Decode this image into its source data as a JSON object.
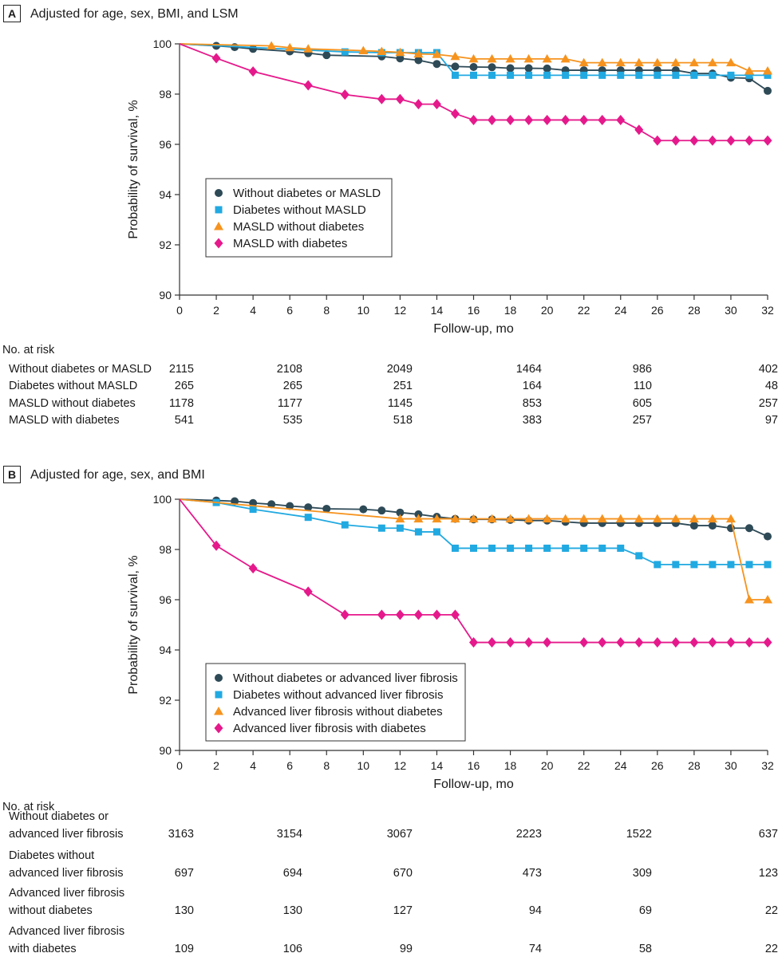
{
  "chart_data": [
    {
      "type": "line",
      "panel": "A",
      "title": "Adjusted for age, sex, BMI, and LSM",
      "xlabel": "Follow-up, mo",
      "ylabel": "Probability of survival, %",
      "xlim": [
        0,
        32
      ],
      "ylim": [
        90,
        100
      ],
      "xticks": [
        "0",
        "2",
        "4",
        "6",
        "8",
        "10",
        "12",
        "14",
        "16",
        "18",
        "20",
        "22",
        "24",
        "26",
        "28",
        "30",
        "32"
      ],
      "yticks": [
        "90",
        "92",
        "94",
        "96",
        "98",
        "100"
      ],
      "legend_position": "middle-left",
      "series": [
        {
          "name": "Without diabetes or MASLD",
          "color": "#2e4a57",
          "marker": "circle",
          "points": [
            [
              0,
              100
            ],
            [
              2,
              99.92
            ],
            [
              3,
              99.87
            ],
            [
              4,
              99.8
            ],
            [
              6,
              99.7
            ],
            [
              7,
              99.63
            ],
            [
              8,
              99.55
            ],
            [
              11,
              99.5
            ],
            [
              12,
              99.42
            ],
            [
              13,
              99.35
            ],
            [
              14,
              99.2
            ],
            [
              15,
              99.1
            ],
            [
              16,
              99.08
            ],
            [
              17,
              99.07
            ],
            [
              18,
              99.03
            ],
            [
              19,
              99.03
            ],
            [
              20,
              99.02
            ],
            [
              21,
              98.95
            ],
            [
              22,
              98.95
            ],
            [
              23,
              98.95
            ],
            [
              24,
              98.95
            ],
            [
              25,
              98.95
            ],
            [
              26,
              98.95
            ],
            [
              27,
              98.95
            ],
            [
              28,
              98.82
            ],
            [
              29,
              98.82
            ],
            [
              30,
              98.65
            ],
            [
              31,
              98.63
            ],
            [
              32,
              98.13
            ]
          ]
        },
        {
          "name": "Diabetes without MASLD",
          "color": "#21a9e1",
          "marker": "square",
          "points": [
            [
              0,
              100
            ],
            [
              9,
              99.68
            ],
            [
              11,
              99.65
            ],
            [
              12,
              99.65
            ],
            [
              13,
              99.65
            ],
            [
              14,
              99.65
            ],
            [
              15,
              98.75
            ],
            [
              16,
              98.75
            ],
            [
              17,
              98.75
            ],
            [
              18,
              98.75
            ],
            [
              19,
              98.75
            ],
            [
              20,
              98.75
            ],
            [
              21,
              98.75
            ],
            [
              22,
              98.75
            ],
            [
              23,
              98.75
            ],
            [
              24,
              98.75
            ],
            [
              25,
              98.75
            ],
            [
              26,
              98.75
            ],
            [
              27,
              98.75
            ],
            [
              28,
              98.75
            ],
            [
              29,
              98.75
            ],
            [
              30,
              98.75
            ],
            [
              31,
              98.75
            ],
            [
              32,
              98.75
            ]
          ]
        },
        {
          "name": "MASLD without diabetes",
          "color": "#f6931e",
          "marker": "triangle",
          "points": [
            [
              0,
              100
            ],
            [
              5,
              99.92
            ],
            [
              6,
              99.85
            ],
            [
              7,
              99.8
            ],
            [
              10,
              99.73
            ],
            [
              11,
              99.7
            ],
            [
              12,
              99.66
            ],
            [
              13,
              99.6
            ],
            [
              14,
              99.58
            ],
            [
              15,
              99.5
            ],
            [
              16,
              99.4
            ],
            [
              17,
              99.4
            ],
            [
              18,
              99.4
            ],
            [
              19,
              99.4
            ],
            [
              20,
              99.4
            ],
            [
              21,
              99.4
            ],
            [
              22,
              99.25
            ],
            [
              23,
              99.25
            ],
            [
              24,
              99.25
            ],
            [
              25,
              99.25
            ],
            [
              26,
              99.25
            ],
            [
              27,
              99.25
            ],
            [
              28,
              99.25
            ],
            [
              29,
              99.25
            ],
            [
              30,
              99.25
            ],
            [
              31,
              98.92
            ],
            [
              32,
              98.92
            ]
          ]
        },
        {
          "name": "MASLD with diabetes",
          "color": "#e5198b",
          "marker": "diamond",
          "points": [
            [
              0,
              100
            ],
            [
              2,
              99.43
            ],
            [
              4,
              98.9
            ],
            [
              7,
              98.35
            ],
            [
              9,
              97.98
            ],
            [
              11,
              97.8
            ],
            [
              12,
              97.8
            ],
            [
              13,
              97.6
            ],
            [
              14,
              97.6
            ],
            [
              15,
              97.22
            ],
            [
              16,
              96.97
            ],
            [
              17,
              96.97
            ],
            [
              18,
              96.97
            ],
            [
              19,
              96.97
            ],
            [
              20,
              96.97
            ],
            [
              21,
              96.97
            ],
            [
              22,
              96.97
            ],
            [
              23,
              96.97
            ],
            [
              24,
              96.97
            ],
            [
              25,
              96.58
            ],
            [
              26,
              96.15
            ],
            [
              27,
              96.15
            ],
            [
              28,
              96.15
            ],
            [
              29,
              96.15
            ],
            [
              30,
              96.15
            ],
            [
              31,
              96.15
            ],
            [
              32,
              96.15
            ]
          ]
        }
      ],
      "risk_table": {
        "heading": "No. at risk",
        "months": [
          0,
          6,
          12,
          18,
          24,
          30
        ],
        "rows": [
          {
            "lines": [
              "Without diabetes or MASLD"
            ],
            "values": [
              "2115",
              "2108",
              "2049",
              "1464",
              "986",
              "402"
            ]
          },
          {
            "lines": [
              "Diabetes without MASLD"
            ],
            "values": [
              "265",
              "265",
              "251",
              "164",
              "110",
              "48"
            ]
          },
          {
            "lines": [
              "MASLD without diabetes"
            ],
            "values": [
              "1178",
              "1177",
              "1145",
              "853",
              "605",
              "257"
            ]
          },
          {
            "lines": [
              "MASLD with diabetes"
            ],
            "values": [
              "541",
              "535",
              "518",
              "383",
              "257",
              "97"
            ]
          }
        ]
      }
    },
    {
      "type": "line",
      "panel": "B",
      "title": "Adjusted for age, sex, and BMI",
      "xlabel": "Follow-up, mo",
      "ylabel": "Probability of survival, %",
      "xlim": [
        0,
        32
      ],
      "ylim": [
        90,
        100
      ],
      "xticks": [
        "0",
        "2",
        "4",
        "6",
        "8",
        "10",
        "12",
        "14",
        "16",
        "18",
        "20",
        "22",
        "24",
        "26",
        "28",
        "30",
        "32"
      ],
      "yticks": [
        "90",
        "92",
        "94",
        "96",
        "98",
        "100"
      ],
      "legend_position": "lower-left",
      "series": [
        {
          "name": "Without diabetes or advanced liver fibrosis",
          "color": "#2e4a57",
          "marker": "circle",
          "points": [
            [
              0,
              100
            ],
            [
              2,
              99.95
            ],
            [
              3,
              99.92
            ],
            [
              4,
              99.85
            ],
            [
              5,
              99.8
            ],
            [
              6,
              99.73
            ],
            [
              7,
              99.68
            ],
            [
              8,
              99.62
            ],
            [
              10,
              99.6
            ],
            [
              11,
              99.55
            ],
            [
              12,
              99.47
            ],
            [
              13,
              99.4
            ],
            [
              14,
              99.3
            ],
            [
              15,
              99.22
            ],
            [
              16,
              99.2
            ],
            [
              17,
              99.2
            ],
            [
              18,
              99.18
            ],
            [
              19,
              99.15
            ],
            [
              20,
              99.15
            ],
            [
              21,
              99.1
            ],
            [
              22,
              99.05
            ],
            [
              23,
              99.05
            ],
            [
              24,
              99.05
            ],
            [
              25,
              99.05
            ],
            [
              26,
              99.05
            ],
            [
              27,
              99.05
            ],
            [
              28,
              98.95
            ],
            [
              29,
              98.95
            ],
            [
              30,
              98.85
            ],
            [
              31,
              98.85
            ],
            [
              32,
              98.52
            ]
          ]
        },
        {
          "name": "Diabetes without advanced liver fibrosis",
          "color": "#21a9e1",
          "marker": "square",
          "points": [
            [
              0,
              100
            ],
            [
              2,
              99.87
            ],
            [
              4,
              99.6
            ],
            [
              7,
              99.28
            ],
            [
              9,
              98.98
            ],
            [
              11,
              98.85
            ],
            [
              12,
              98.85
            ],
            [
              13,
              98.7
            ],
            [
              14,
              98.7
            ],
            [
              15,
              98.05
            ],
            [
              16,
              98.05
            ],
            [
              17,
              98.05
            ],
            [
              18,
              98.05
            ],
            [
              19,
              98.05
            ],
            [
              20,
              98.05
            ],
            [
              21,
              98.05
            ],
            [
              22,
              98.05
            ],
            [
              23,
              98.05
            ],
            [
              24,
              98.05
            ],
            [
              25,
              97.75
            ],
            [
              26,
              97.4
            ],
            [
              27,
              97.4
            ],
            [
              28,
              97.4
            ],
            [
              29,
              97.4
            ],
            [
              30,
              97.4
            ],
            [
              31,
              97.4
            ],
            [
              32,
              97.4
            ]
          ]
        },
        {
          "name": "Advanced liver fibrosis without diabetes",
          "color": "#f6931e",
          "marker": "triangle",
          "points": [
            [
              0,
              100
            ],
            [
              12,
              99.22
            ],
            [
              13,
              99.22
            ],
            [
              14,
              99.22
            ],
            [
              15,
              99.22
            ],
            [
              16,
              99.22
            ],
            [
              17,
              99.22
            ],
            [
              18,
              99.22
            ],
            [
              19,
              99.22
            ],
            [
              20,
              99.22
            ],
            [
              21,
              99.22
            ],
            [
              22,
              99.22
            ],
            [
              23,
              99.22
            ],
            [
              24,
              99.22
            ],
            [
              25,
              99.22
            ],
            [
              26,
              99.22
            ],
            [
              27,
              99.22
            ],
            [
              28,
              99.22
            ],
            [
              29,
              99.22
            ],
            [
              30,
              99.22
            ],
            [
              31,
              96.0
            ],
            [
              32,
              96.0
            ]
          ]
        },
        {
          "name": "Advanced liver fibrosis with diabetes",
          "color": "#e5198b",
          "marker": "diamond",
          "points": [
            [
              0,
              100
            ],
            [
              2,
              98.15
            ],
            [
              4,
              97.25
            ],
            [
              7,
              96.32
            ],
            [
              9,
              95.4
            ],
            [
              11,
              95.4
            ],
            [
              12,
              95.4
            ],
            [
              13,
              95.4
            ],
            [
              14,
              95.4
            ],
            [
              15,
              95.4
            ],
            [
              16,
              94.3
            ],
            [
              17,
              94.3
            ],
            [
              18,
              94.3
            ],
            [
              19,
              94.3
            ],
            [
              20,
              94.3
            ],
            [
              22,
              94.3
            ],
            [
              23,
              94.3
            ],
            [
              24,
              94.3
            ],
            [
              25,
              94.3
            ],
            [
              26,
              94.3
            ],
            [
              27,
              94.3
            ],
            [
              28,
              94.3
            ],
            [
              29,
              94.3
            ],
            [
              30,
              94.3
            ],
            [
              31,
              94.3
            ],
            [
              32,
              94.3
            ]
          ]
        }
      ],
      "risk_table": {
        "heading": "No. at risk",
        "months": [
          0,
          6,
          12,
          18,
          24,
          30
        ],
        "rows": [
          {
            "lines": [
              "Without diabetes or",
              "advanced liver fibrosis"
            ],
            "values": [
              "3163",
              "3154",
              "3067",
              "2223",
              "1522",
              "637"
            ]
          },
          {
            "lines": [
              "Diabetes without",
              "advanced liver fibrosis"
            ],
            "values": [
              "697",
              "694",
              "670",
              "473",
              "309",
              "123"
            ]
          },
          {
            "lines": [
              "Advanced liver fibrosis",
              "without diabetes"
            ],
            "values": [
              "130",
              "130",
              "127",
              "94",
              "69",
              "22"
            ]
          },
          {
            "lines": [
              "Advanced liver fibrosis",
              "with diabetes"
            ],
            "values": [
              "109",
              "106",
              "99",
              "74",
              "58",
              "22"
            ]
          }
        ]
      }
    }
  ]
}
